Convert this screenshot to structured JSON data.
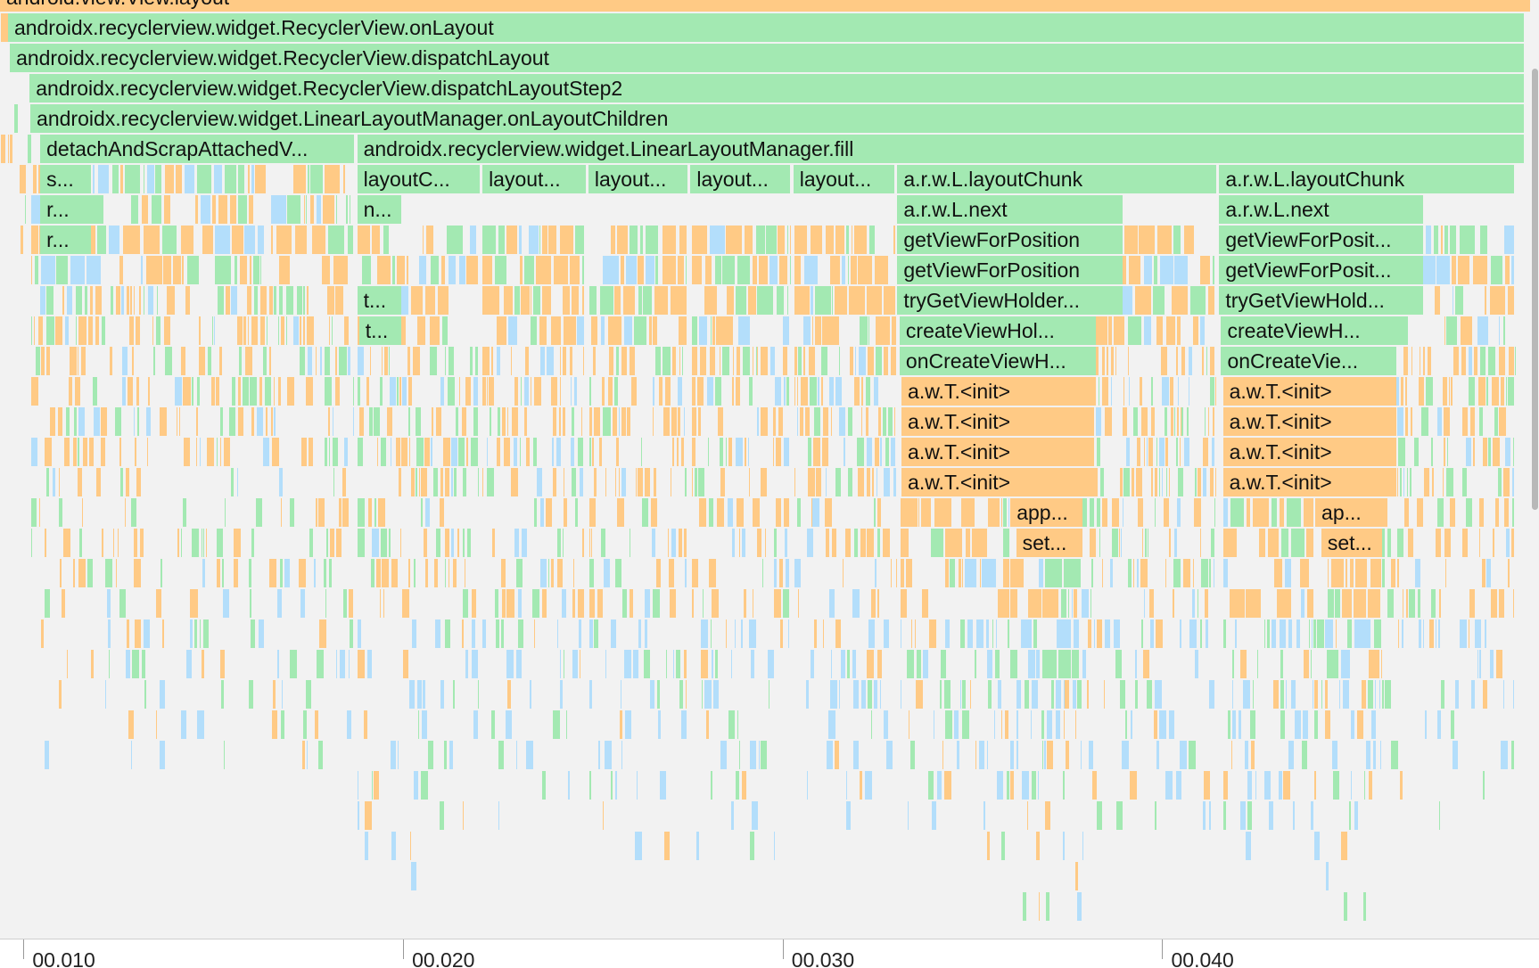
{
  "colors": {
    "java": "#ffca85",
    "app": "#a3e9b2",
    "native": "#b3defb",
    "background": "#f2f2f2"
  },
  "time_axis": {
    "ticks": [
      {
        "t": 10,
        "label": "00.010"
      },
      {
        "t": 20,
        "label": "00.020"
      },
      {
        "t": 30,
        "label": "00.030"
      },
      {
        "t": 40,
        "label": "00.040"
      }
    ]
  },
  "frames": [
    {
      "depth": 0,
      "start": 9.38,
      "end": 49.9,
      "kind": "java",
      "label": "android.view.View.layout"
    },
    {
      "depth": 1,
      "start": 9.59,
      "end": 49.56,
      "kind": "app",
      "label": "androidx.recyclerview.widget.RecyclerView.onLayout"
    },
    {
      "depth": 2,
      "start": 9.64,
      "end": 49.56,
      "kind": "app",
      "label": "androidx.recyclerview.widget.RecyclerView.dispatchLayout"
    },
    {
      "depth": 3,
      "start": 10.16,
      "end": 49.56,
      "kind": "app",
      "label": "androidx.recyclerview.widget.RecyclerView.dispatchLayoutStep2"
    },
    {
      "depth": 4,
      "start": 10.18,
      "end": 49.56,
      "kind": "app",
      "label": "androidx.recyclerview.widget.LinearLayoutManager.onLayoutChildren"
    },
    {
      "depth": 5,
      "start": 10.44,
      "end": 18.73,
      "kind": "app",
      "label": "detachAndScrapAttachedV..."
    },
    {
      "depth": 5,
      "start": 18.79,
      "end": 49.56,
      "kind": "app",
      "label": "androidx.recyclerview.widget.LinearLayoutManager.fill"
    },
    {
      "depth": 6,
      "start": 10.44,
      "end": 11.81,
      "kind": "app",
      "label": "s..."
    },
    {
      "depth": 6,
      "start": 18.79,
      "end": 22.04,
      "kind": "app",
      "label": "layoutC..."
    },
    {
      "depth": 6,
      "start": 22.09,
      "end": 24.83,
      "kind": "app",
      "label": "layout..."
    },
    {
      "depth": 6,
      "start": 24.88,
      "end": 27.52,
      "kind": "app",
      "label": "layout..."
    },
    {
      "depth": 6,
      "start": 27.57,
      "end": 30.21,
      "kind": "app",
      "label": "layout..."
    },
    {
      "depth": 6,
      "start": 30.28,
      "end": 32.97,
      "kind": "app",
      "label": "layout..."
    },
    {
      "depth": 6,
      "start": 33.02,
      "end": 41.45,
      "kind": "app",
      "label": "a.r.w.L.layoutChunk"
    },
    {
      "depth": 6,
      "start": 41.5,
      "end": 49.3,
      "kind": "app",
      "label": "a.r.w.L.layoutChunk"
    },
    {
      "depth": 7,
      "start": 10.44,
      "end": 11.81,
      "kind": "app",
      "label": "r..."
    },
    {
      "depth": 7,
      "start": 18.79,
      "end": 19.97,
      "kind": "app",
      "label": "n..."
    },
    {
      "depth": 7,
      "start": 33.02,
      "end": 38.99,
      "kind": "app",
      "label": "a.r.w.L.next"
    },
    {
      "depth": 7,
      "start": 41.5,
      "end": 46.9,
      "kind": "app",
      "label": "a.r.w.L.next"
    },
    {
      "depth": 8,
      "start": 10.44,
      "end": 11.81,
      "kind": "app",
      "label": "r..."
    },
    {
      "depth": 8,
      "start": 33.02,
      "end": 38.99,
      "kind": "app",
      "label": "getViewForPosition"
    },
    {
      "depth": 8,
      "start": 41.5,
      "end": 46.9,
      "kind": "app",
      "label": "getViewForPosit..."
    },
    {
      "depth": 9,
      "start": 33.02,
      "end": 38.99,
      "kind": "app",
      "label": "getViewForPosition"
    },
    {
      "depth": 9,
      "start": 41.5,
      "end": 46.9,
      "kind": "app",
      "label": "getViewForPosit..."
    },
    {
      "depth": 10,
      "start": 18.79,
      "end": 19.97,
      "kind": "app",
      "label": "t..."
    },
    {
      "depth": 10,
      "start": 33.02,
      "end": 38.99,
      "kind": "app",
      "label": "tryGetViewHolder..."
    },
    {
      "depth": 10,
      "start": 41.5,
      "end": 46.9,
      "kind": "app",
      "label": "tryGetViewHold..."
    },
    {
      "depth": 11,
      "start": 18.84,
      "end": 19.97,
      "kind": "app",
      "label": "t..."
    },
    {
      "depth": 11,
      "start": 33.08,
      "end": 38.27,
      "kind": "app",
      "label": "createViewHol..."
    },
    {
      "depth": 11,
      "start": 41.55,
      "end": 46.18,
      "kind": "app",
      "label": "createViewH..."
    },
    {
      "depth": 12,
      "start": 33.08,
      "end": 38.27,
      "kind": "app",
      "label": "onCreateViewH..."
    },
    {
      "depth": 12,
      "start": 41.55,
      "end": 46.18,
      "kind": "app",
      "label": "onCreateVie..."
    },
    {
      "depth": 13,
      "start": 33.13,
      "end": 38.22,
      "kind": "java",
      "label": "a.w.T.<init>"
    },
    {
      "depth": 13,
      "start": 41.6,
      "end": 46.18,
      "kind": "java",
      "label": "a.w.T.<init>"
    },
    {
      "depth": 14,
      "start": 33.13,
      "end": 38.22,
      "kind": "java",
      "label": "a.w.T.<init>"
    },
    {
      "depth": 14,
      "start": 41.6,
      "end": 46.18,
      "kind": "java",
      "label": "a.w.T.<init>"
    },
    {
      "depth": 15,
      "start": 33.13,
      "end": 38.22,
      "kind": "java",
      "label": "a.w.T.<init>"
    },
    {
      "depth": 15,
      "start": 41.6,
      "end": 46.18,
      "kind": "java",
      "label": "a.w.T.<init>"
    },
    {
      "depth": 16,
      "start": 33.13,
      "end": 38.22,
      "kind": "java",
      "label": "a.w.T.<init>"
    },
    {
      "depth": 16,
      "start": 41.6,
      "end": 46.18,
      "kind": "java",
      "label": "a.w.T.<init>"
    },
    {
      "depth": 17,
      "start": 36.0,
      "end": 37.91,
      "kind": "java",
      "label": "app..."
    },
    {
      "depth": 17,
      "start": 44.03,
      "end": 45.81,
      "kind": "java",
      "label": "ap..."
    },
    {
      "depth": 18,
      "start": 36.15,
      "end": 37.91,
      "kind": "java",
      "label": "set..."
    },
    {
      "depth": 18,
      "start": 44.19,
      "end": 45.81,
      "kind": "java",
      "label": "set..."
    }
  ]
}
